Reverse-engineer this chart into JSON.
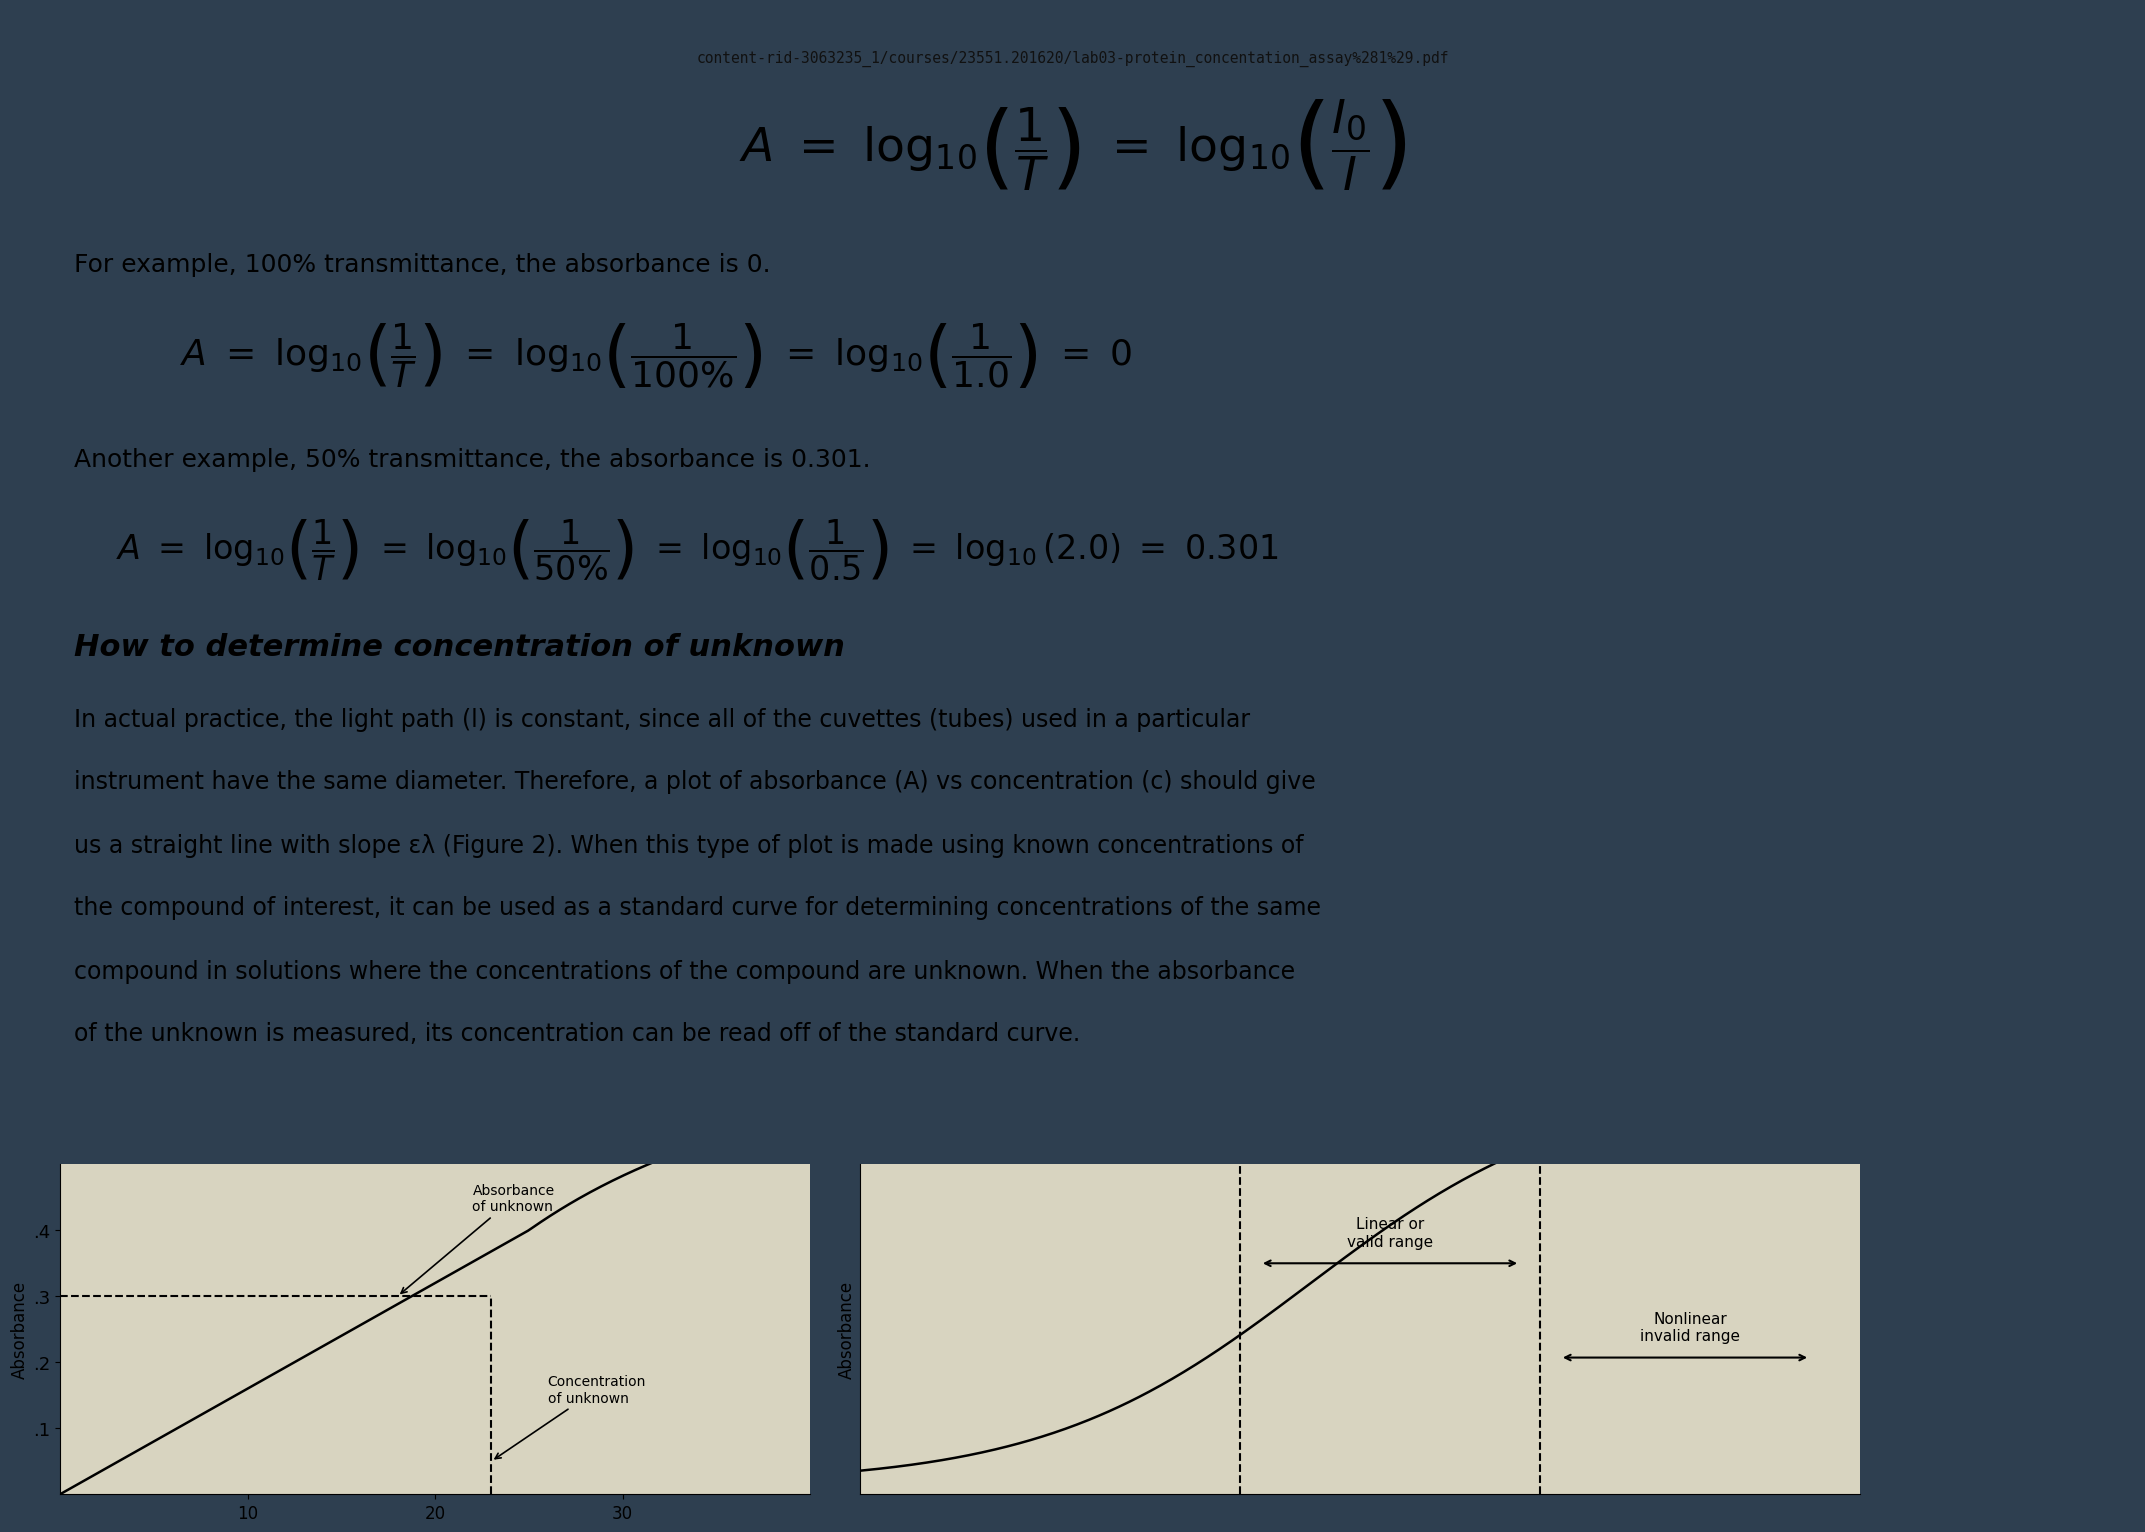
{
  "bg_color": "#d8d4c0",
  "dark_bg_left": "#2e3f50",
  "dark_bg_right": "#3a4a5a",
  "page_bg": "#d0ccb8",
  "url_text": "content-rid-3063235_1/courses/23551.201620/lab03-protein_concentation_assay%281%29.pdf",
  "text1": "For example, 100% transmittance, the absorbance is 0.",
  "text2": "Another example, 50% transmittance, the absorbance is 0.301.",
  "section_title": "How to determine concentration of unknown",
  "body_line1": "In actual practice, the light path (l) is constant, since all of the cuvettes (tubes) used in a particular",
  "body_line2": "instrument have the same diameter. Therefore, a plot of absorbance (A) vs concentration (c) should give",
  "body_line3": "us a straight line with slope ελ (Figure 2). When this type of plot is made using known concentrations of",
  "body_line4": "the compound of interest, it can be used as a standard curve for determining concentrations of the same",
  "body_line5": "compound in solutions where the concentrations of the compound are unknown. When the absorbance",
  "body_line6": "of the unknown is measured, its concentration can be read off of the standard curve.",
  "ylabel_left": "Absorbance",
  "ylabel_right": "Absorbance",
  "label_abs_unknown": "Absorbance\nof unknown",
  "label_conc_unknown": "Concentration\nof unknown",
  "label_linear": "Linear or\nvalid range",
  "label_nonlinear": "Nonlinear\ninvalid range",
  "ytick_labels": [
    ".1",
    ".2",
    ".3",
    ".4"
  ],
  "ytick_vals": [
    0.1,
    0.2,
    0.3,
    0.4
  ],
  "xtick_val": "10"
}
